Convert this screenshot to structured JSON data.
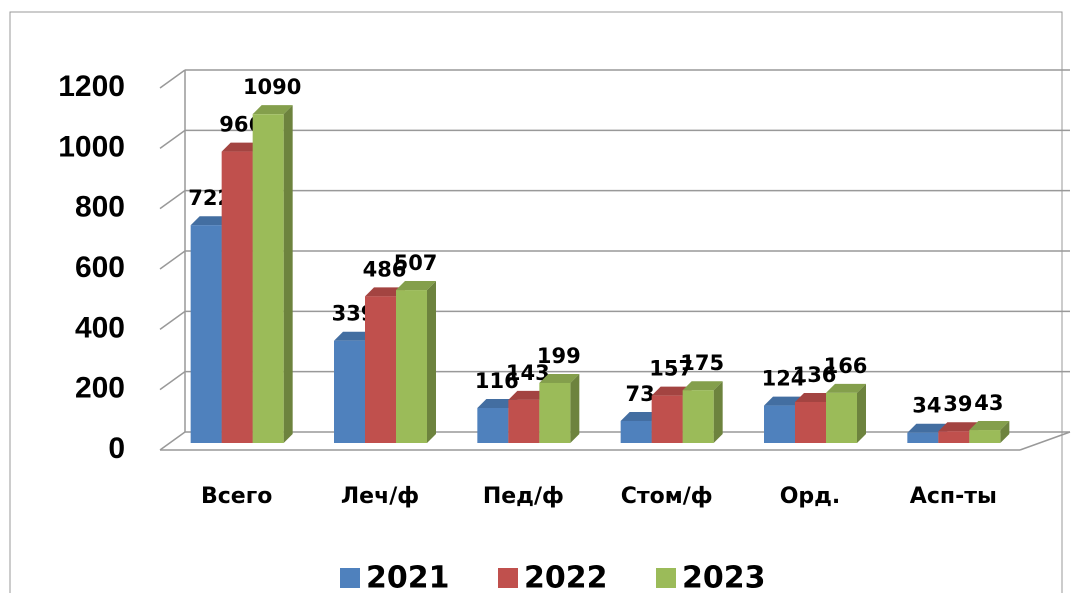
{
  "chart_data": {
    "type": "bar",
    "categories": [
      "Всего",
      "Леч/ф",
      "Пед/ф",
      "Стом/ф",
      "Орд.",
      "Асп-ты"
    ],
    "series": [
      {
        "name": "2021",
        "color": "#4f81bd",
        "values": [
          722,
          339,
          116,
          73,
          124,
          34
        ]
      },
      {
        "name": "2022",
        "color": "#c0504d",
        "values": [
          966,
          486,
          143,
          157,
          136,
          39
        ]
      },
      {
        "name": "2023",
        "color": "#9bbb59",
        "values": [
          1090,
          507,
          199,
          175,
          166,
          43
        ]
      }
    ],
    "ylim": [
      0,
      1200
    ],
    "yticks": [
      0,
      200,
      400,
      600,
      800,
      1000,
      1200
    ],
    "grid": true
  }
}
